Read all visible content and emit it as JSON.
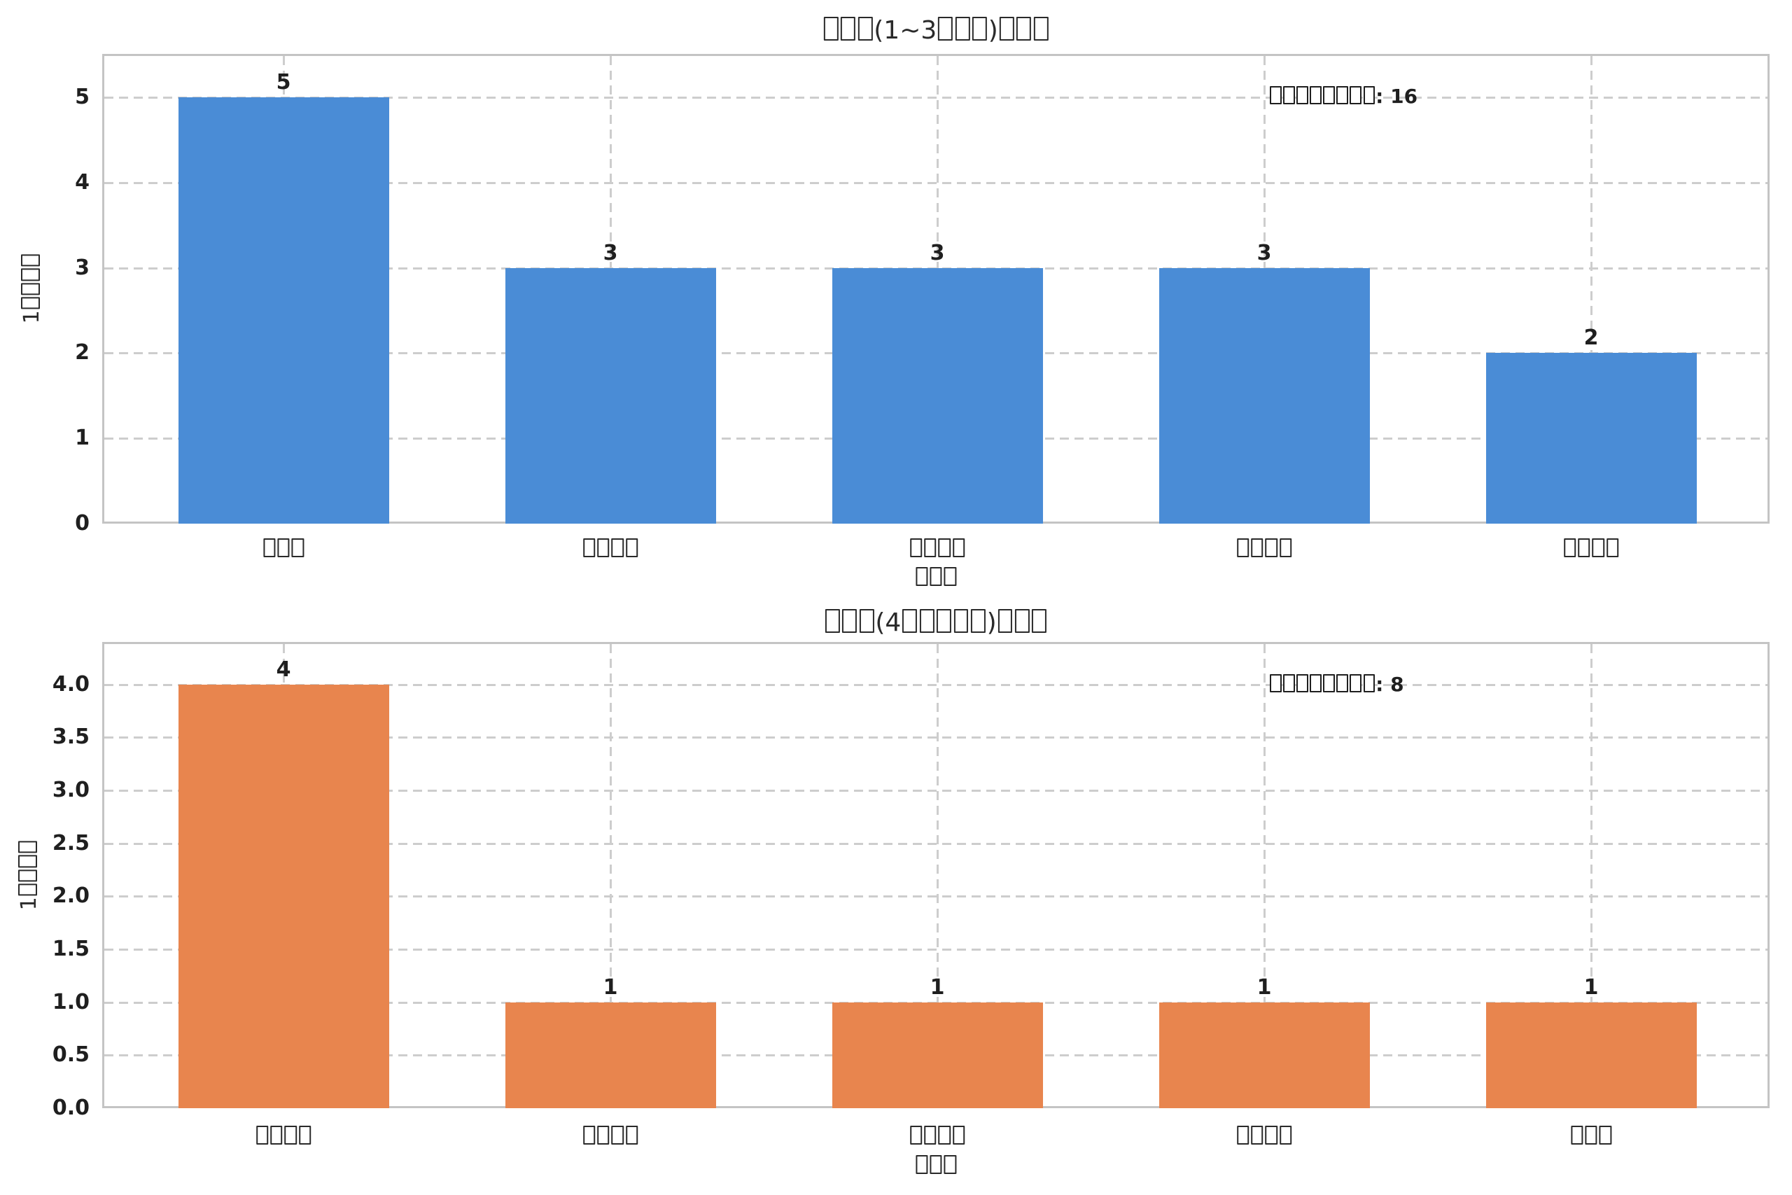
{
  "figure": {
    "background": "#ffffff",
    "description": "two stacked bar subplots, missing-glyph (tofu) CJK labels"
  },
  "colors": {
    "bar_blue": "#4a8cd6",
    "bar_orange": "#e8854e",
    "grid": "#cdcdcd",
    "spine": "#c4c4c4",
    "text": "#2a2a2a",
    "bold_text": "#1f1f1f"
  },
  "chart_data": [
    {
      "type": "bar",
      "title": "□□□(1~3□□□)□□□",
      "categories": [
        "□□□",
        "□□□□",
        "□□□□",
        "□□□□",
        "□□□□"
      ],
      "values": [
        5,
        3,
        3,
        3,
        2
      ],
      "value_labels": [
        "5",
        "3",
        "3",
        "3",
        "2"
      ],
      "annotation": "□□□□□□□□: 16",
      "xlabel": "□□□",
      "ylabel": "1□□□□",
      "ytick_labels": [
        "0",
        "1",
        "2",
        "3",
        "4",
        "5"
      ],
      "ytick_values": [
        0,
        1,
        2,
        3,
        4,
        5
      ],
      "ylim": [
        0,
        5.51
      ],
      "bar_color": "#4a8cd6",
      "grid": "dashed, horizontal and vertical",
      "legend": "none"
    },
    {
      "type": "bar",
      "title": "□□□(4□□□□□)□□□",
      "categories": [
        "□□□□",
        "□□□□",
        "□□□□",
        "□□□□",
        "□□□"
      ],
      "values": [
        4,
        1,
        1,
        1,
        1
      ],
      "value_labels": [
        "4",
        "1",
        "1",
        "1",
        "1"
      ],
      "annotation": "□□□□□□□□: 8",
      "xlabel": "□□□",
      "ylabel": "1□□□□",
      "ytick_labels": [
        "0.0",
        "0.5",
        "1.0",
        "1.5",
        "2.0",
        "2.5",
        "3.0",
        "3.5",
        "4.0"
      ],
      "ytick_values": [
        0,
        0.5,
        1,
        1.5,
        2,
        2.5,
        3,
        3.5,
        4
      ],
      "ylim": [
        0,
        4.4
      ],
      "bar_color": "#e8854e",
      "grid": "dashed, horizontal and vertical",
      "legend": "none"
    }
  ]
}
